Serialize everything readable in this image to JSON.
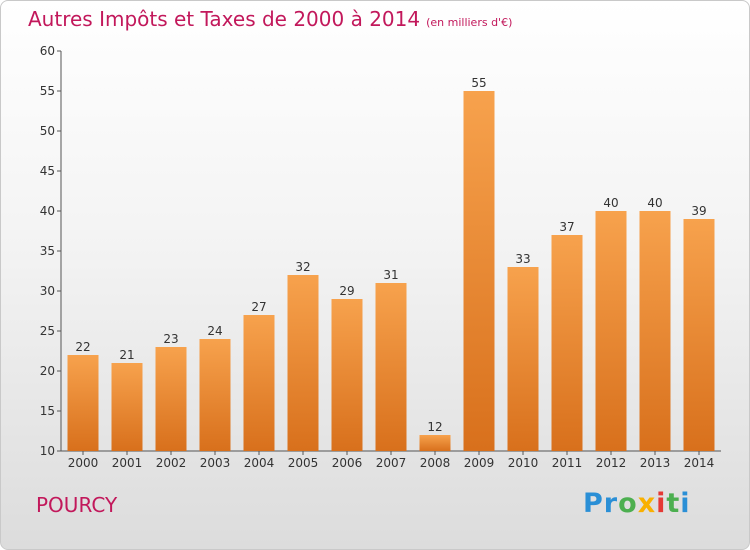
{
  "header": {
    "title": "Autres Impôts et Taxes de 2000 à 2014",
    "subtitle": "(en milliers d'€)"
  },
  "footer": {
    "commune": "POURCY",
    "brand_letters": [
      "P",
      "r",
      "o",
      "x",
      "i",
      "t",
      "i"
    ],
    "brand_colors": [
      "#2a8fd6",
      "#2a8fd6",
      "#4caf50",
      "#f9b000",
      "#e53935",
      "#4caf50",
      "#2a8fd6"
    ]
  },
  "chart_data": {
    "type": "bar",
    "categories": [
      "2000",
      "2001",
      "2002",
      "2003",
      "2004",
      "2005",
      "2006",
      "2007",
      "2008",
      "2009",
      "2010",
      "2011",
      "2012",
      "2013",
      "2014"
    ],
    "values": [
      22,
      21,
      23,
      24,
      27,
      32,
      29,
      31,
      12,
      55,
      33,
      37,
      40,
      40,
      39
    ],
    "ylim": [
      10,
      60
    ],
    "yticks": [
      10,
      15,
      20,
      25,
      30,
      35,
      40,
      45,
      50,
      55,
      60
    ],
    "grid": false,
    "bar_color": "#f08a2c",
    "title": "Autres Impôts et Taxes de 2000 à 2014",
    "subtitle": "(en milliers d'€)"
  }
}
